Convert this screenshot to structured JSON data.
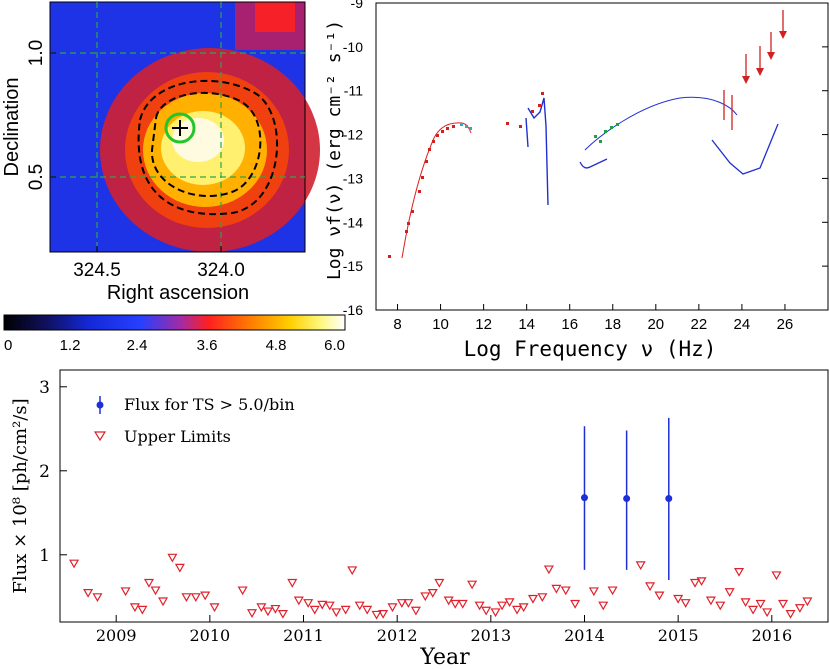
{
  "colors": {
    "accent_blue": "#1f2fd6",
    "upper_limit_red": "#e0202a",
    "grid_green": "#21b24b",
    "sed_red": "#ff2b2b"
  },
  "chart_data": [
    {
      "type": "heatmap",
      "xlabel": "Right ascension",
      "ylabel": "Declination",
      "x_ticks": [
        "324.5",
        "324.0"
      ],
      "y_ticks": [
        "1.0",
        "0.5"
      ],
      "colorbar": {
        "ticks": [
          "0",
          "1.2",
          "2.4",
          "3.6",
          "4.8",
          "6.0"
        ],
        "range": [
          0,
          6.0
        ]
      },
      "marker": "+"
    },
    {
      "type": "scatter",
      "xlabel": "Log Frequency ν (Hz)",
      "ylabel": "Log νf(ν) (erg cm⁻² s⁻¹)",
      "xlim": [
        7,
        28
      ],
      "ylim": [
        -16,
        -9
      ],
      "x_ticks": [
        "8",
        "10",
        "12",
        "14",
        "16",
        "18",
        "20",
        "22",
        "24",
        "26"
      ],
      "y_ticks": [
        "-9",
        "-10",
        "-11",
        "-12",
        "-13",
        "-14",
        "-15",
        "-16"
      ]
    },
    {
      "type": "scatter",
      "xlabel": "Year",
      "ylabel": "Flux × 10⁸ [ph/cm²/s]",
      "xlim": [
        2008.4,
        2016.6
      ],
      "ylim": [
        0.2,
        3.2
      ],
      "x_ticks": [
        "2009",
        "2010",
        "2011",
        "2012",
        "2013",
        "2014",
        "2015",
        "2016"
      ],
      "y_ticks": [
        "1",
        "2",
        "3"
      ],
      "series": [
        {
          "name": "Flux for TS > 5.0/bin",
          "x": [
            2014.0,
            2014.45,
            2014.9
          ],
          "y": [
            1.68,
            1.67,
            1.67
          ],
          "err_low": [
            0.82,
            0.82,
            0.7
          ],
          "err_high": [
            2.53,
            2.48,
            2.63
          ]
        },
        {
          "name": "Upper Limits",
          "x": [
            2008.55,
            2008.7,
            2008.8,
            2009.1,
            2009.2,
            2009.28,
            2009.35,
            2009.42,
            2009.5,
            2009.6,
            2009.68,
            2009.75,
            2009.85,
            2009.95,
            2010.05,
            2010.35,
            2010.45,
            2010.55,
            2010.62,
            2010.7,
            2010.78,
            2010.88,
            2010.95,
            2011.05,
            2011.12,
            2011.2,
            2011.28,
            2011.35,
            2011.45,
            2011.52,
            2011.6,
            2011.68,
            2011.78,
            2011.85,
            2011.95,
            2012.05,
            2012.12,
            2012.2,
            2012.3,
            2012.38,
            2012.45,
            2012.55,
            2012.62,
            2012.7,
            2012.8,
            2012.88,
            2012.95,
            2013.05,
            2013.12,
            2013.2,
            2013.28,
            2013.35,
            2013.45,
            2013.55,
            2013.62,
            2013.7,
            2013.8,
            2013.9,
            2014.1,
            2014.2,
            2014.3,
            2014.6,
            2014.7,
            2014.8,
            2015.0,
            2015.08,
            2015.18,
            2015.25,
            2015.35,
            2015.45,
            2015.55,
            2015.65,
            2015.72,
            2015.8,
            2015.88,
            2015.95,
            2016.05,
            2016.12,
            2016.2,
            2016.3,
            2016.38
          ],
          "y": [
            0.9,
            0.55,
            0.5,
            0.57,
            0.38,
            0.35,
            0.67,
            0.58,
            0.45,
            0.97,
            0.85,
            0.5,
            0.5,
            0.52,
            0.38,
            0.58,
            0.31,
            0.38,
            0.33,
            0.36,
            0.3,
            0.67,
            0.46,
            0.43,
            0.35,
            0.41,
            0.4,
            0.32,
            0.35,
            0.82,
            0.4,
            0.35,
            0.29,
            0.3,
            0.38,
            0.43,
            0.43,
            0.34,
            0.51,
            0.55,
            0.67,
            0.46,
            0.42,
            0.42,
            0.65,
            0.4,
            0.34,
            0.32,
            0.4,
            0.44,
            0.35,
            0.38,
            0.48,
            0.5,
            0.83,
            0.6,
            0.58,
            0.42,
            0.57,
            0.4,
            0.58,
            0.88,
            0.63,
            0.52,
            0.48,
            0.43,
            0.67,
            0.69,
            0.46,
            0.4,
            0.56,
            0.8,
            0.44,
            0.35,
            0.42,
            0.32,
            0.76,
            0.42,
            0.3,
            0.37,
            0.45
          ]
        }
      ]
    }
  ]
}
